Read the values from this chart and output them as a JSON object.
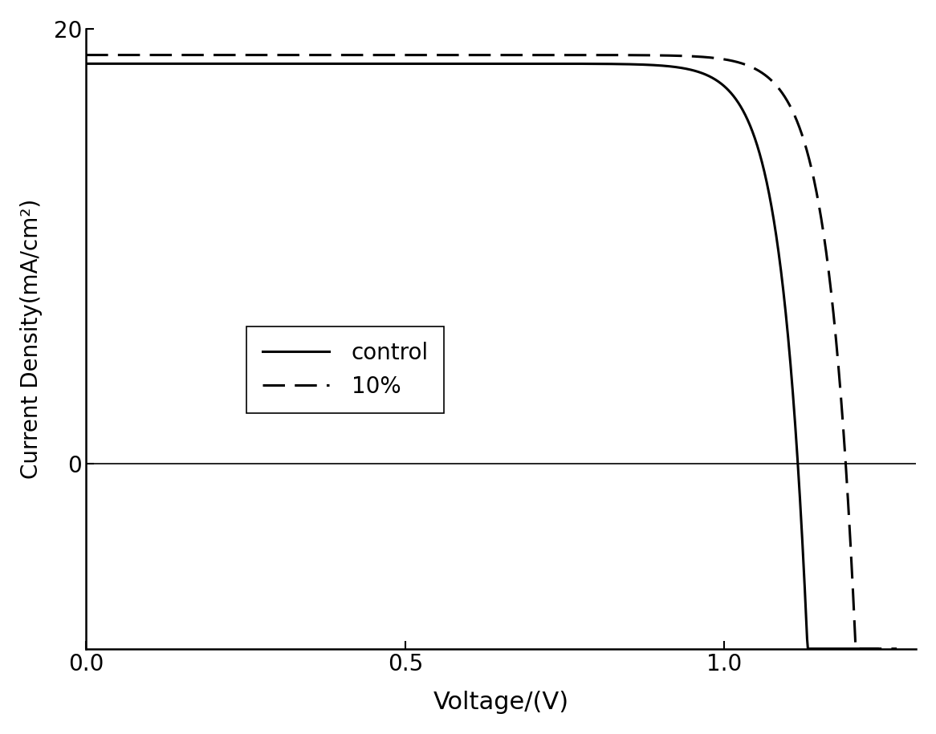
{
  "title": "",
  "xlabel": "Voltage/(V)",
  "ylabel": "Current Density(mA/cm²)",
  "xlim": [
    0.0,
    1.3
  ],
  "ylim": [
    -8.5,
    20
  ],
  "yticks": [
    0,
    20
  ],
  "xticks": [
    0.0,
    0.5,
    1.0
  ],
  "control_color": "#000000",
  "pct10_color": "#000000",
  "linewidth": 2.2,
  "background_color": "#ffffff",
  "jsc_control": 18.4,
  "jsc_10pct": 18.8,
  "voc_control": 1.115,
  "voc_10pct": 1.19,
  "ideality_control": 1.55,
  "ideality_10pct": 1.62
}
